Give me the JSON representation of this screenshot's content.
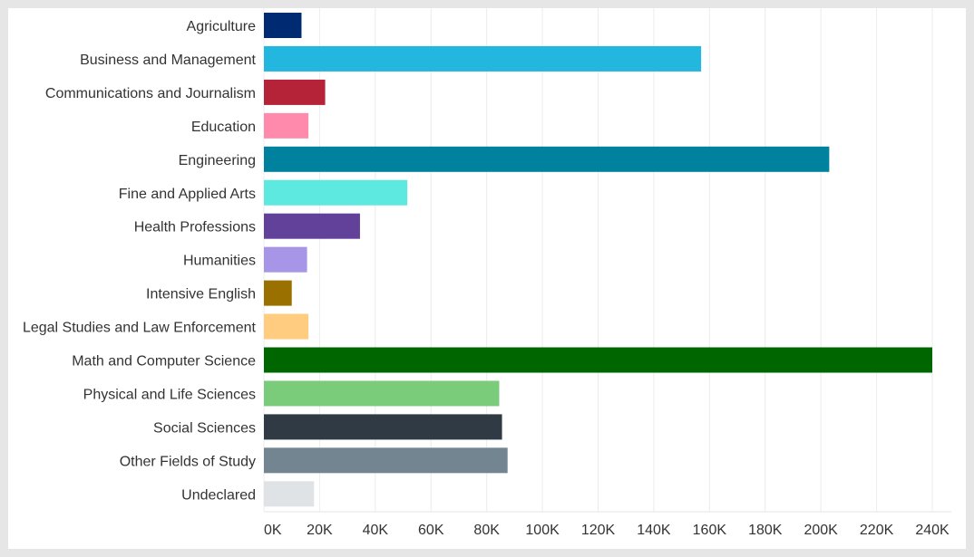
{
  "chart_data": {
    "type": "bar",
    "orientation": "horizontal",
    "title": "",
    "xlabel": "",
    "ylabel": "",
    "xlim": [
      0,
      245000
    ],
    "grid": true,
    "legend": "none",
    "categories": [
      "Agriculture",
      "Business and Management",
      "Communications and Journalism",
      "Education",
      "Engineering",
      "Fine and Applied Arts",
      "Health Professions",
      "Humanities",
      "Intensive English",
      "Legal Studies and Law Enforcement",
      "Math and Computer Science",
      "Physical and Life Sciences",
      "Social Sciences",
      "Other Fields of Study",
      "Undeclared"
    ],
    "values": [
      13500,
      157000,
      22000,
      16000,
      203000,
      51500,
      34500,
      15500,
      10000,
      16000,
      240000,
      84500,
      85500,
      87500,
      18000
    ],
    "colors": [
      "#002b73",
      "#23b7e0",
      "#b42337",
      "#ff8aab",
      "#00829f",
      "#5de8e0",
      "#62419a",
      "#a796e8",
      "#9a7000",
      "#ffcc80",
      "#006600",
      "#7acc7a",
      "#2f3a44",
      "#748592",
      "#e0e3e6"
    ],
    "x_ticks": [
      0,
      20000,
      40000,
      60000,
      80000,
      100000,
      120000,
      140000,
      160000,
      180000,
      200000,
      220000,
      240000
    ],
    "x_tick_labels": [
      "0K",
      "20K",
      "40K",
      "60K",
      "80K",
      "100K",
      "120K",
      "140K",
      "160K",
      "180K",
      "200K",
      "220K",
      "240K"
    ]
  }
}
